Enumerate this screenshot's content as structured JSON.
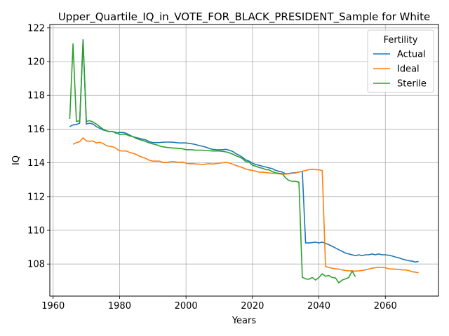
{
  "chart_data": {
    "type": "line",
    "title": "Upper_Quartile_IQ_in_VOTE_FOR_BLACK_PRESIDENT_Sample for White",
    "xlabel": "Years",
    "ylabel": "IQ",
    "xlim": [
      1959,
      2076
    ],
    "ylim": [
      106.1,
      122.2
    ],
    "xticks": [
      1960,
      1980,
      2000,
      2020,
      2040,
      2060
    ],
    "yticks": [
      108,
      110,
      112,
      114,
      116,
      118,
      120,
      122
    ],
    "grid": true,
    "legend": {
      "title": "Fertility",
      "placement": "top-right"
    },
    "series": [
      {
        "name": "Actual",
        "color": "#1f77b4",
        "x": [
          1965,
          1966,
          1967,
          1968,
          1969,
          1970,
          1971,
          1972,
          1973,
          1974,
          1975,
          1976,
          1977,
          1978,
          1979,
          1980,
          1981,
          1982,
          1983,
          1984,
          1985,
          1986,
          1987,
          1988,
          1989,
          1990,
          1991,
          1992,
          1993,
          1994,
          1995,
          1996,
          1997,
          1998,
          1999,
          2000,
          2001,
          2002,
          2003,
          2004,
          2005,
          2006,
          2007,
          2008,
          2009,
          2010,
          2011,
          2012,
          2013,
          2014,
          2015,
          2016,
          2017,
          2018,
          2019,
          2020,
          2021,
          2022,
          2023,
          2024,
          2025,
          2026,
          2027,
          2028,
          2029,
          2030,
          2031,
          2032,
          2033,
          2034,
          2035,
          2036,
          2037,
          2038,
          2039,
          2040,
          2041,
          2042,
          2043,
          2044,
          2045,
          2046,
          2047,
          2048,
          2049,
          2050,
          2051,
          2052,
          2053,
          2054,
          2055,
          2056,
          2057,
          2058,
          2059,
          2060,
          2061,
          2062,
          2063,
          2064,
          2065,
          2066,
          2067,
          2068,
          2069,
          2070
        ],
        "y": [
          116.15,
          116.25,
          116.27,
          116.35,
          121.3,
          116.3,
          116.35,
          116.3,
          116.15,
          116.05,
          115.95,
          115.9,
          115.85,
          115.85,
          115.75,
          115.8,
          115.8,
          115.75,
          115.65,
          115.55,
          115.5,
          115.45,
          115.4,
          115.35,
          115.25,
          115.2,
          115.2,
          115.2,
          115.22,
          115.23,
          115.23,
          115.22,
          115.2,
          115.18,
          115.18,
          115.18,
          115.15,
          115.12,
          115.08,
          115.02,
          114.98,
          114.93,
          114.85,
          114.8,
          114.78,
          114.77,
          114.78,
          114.8,
          114.75,
          114.68,
          114.55,
          114.45,
          114.33,
          114.17,
          114.1,
          113.98,
          113.9,
          113.85,
          113.8,
          113.75,
          113.7,
          113.65,
          113.55,
          113.5,
          113.45,
          113.35,
          113.37,
          113.4,
          113.42,
          113.45,
          113.5,
          109.25,
          109.25,
          109.27,
          109.3,
          109.25,
          109.3,
          109.22,
          109.15,
          109.05,
          108.95,
          108.85,
          108.75,
          108.65,
          108.6,
          108.55,
          108.5,
          108.55,
          108.5,
          108.55,
          108.55,
          108.6,
          108.55,
          108.6,
          108.55,
          108.55,
          108.52,
          108.48,
          108.42,
          108.38,
          108.3,
          108.25,
          108.2,
          108.18,
          108.12,
          108.15
        ]
      },
      {
        "name": "Ideal",
        "color": "#ff7f0e",
        "x": [
          1966,
          1967,
          1968,
          1969,
          1970,
          1971,
          1972,
          1973,
          1974,
          1975,
          1976,
          1977,
          1978,
          1979,
          1980,
          1981,
          1982,
          1983,
          1984,
          1985,
          1986,
          1987,
          1988,
          1989,
          1990,
          1991,
          1992,
          1993,
          1994,
          1995,
          1996,
          1997,
          1998,
          1999,
          2000,
          2001,
          2002,
          2003,
          2004,
          2005,
          2006,
          2007,
          2008,
          2009,
          2010,
          2011,
          2012,
          2013,
          2014,
          2015,
          2016,
          2017,
          2018,
          2019,
          2020,
          2021,
          2022,
          2023,
          2024,
          2025,
          2026,
          2027,
          2028,
          2029,
          2030,
          2031,
          2032,
          2033,
          2034,
          2035,
          2036,
          2037,
          2038,
          2039,
          2040,
          2041,
          2042,
          2043,
          2044,
          2045,
          2046,
          2047,
          2048,
          2049,
          2050,
          2051,
          2052,
          2053,
          2054,
          2055,
          2056,
          2057,
          2058,
          2059,
          2060,
          2061,
          2062,
          2063,
          2064,
          2065,
          2066,
          2067,
          2068,
          2069,
          2070
        ],
        "y": [
          115.1,
          115.2,
          115.25,
          115.48,
          115.3,
          115.28,
          115.3,
          115.18,
          115.22,
          115.15,
          115.02,
          114.98,
          114.95,
          114.85,
          114.72,
          114.7,
          114.7,
          114.62,
          114.57,
          114.5,
          114.4,
          114.32,
          114.25,
          114.15,
          114.1,
          114.1,
          114.1,
          114.03,
          114.03,
          114.05,
          114.08,
          114.05,
          114.03,
          114.05,
          113.98,
          113.95,
          113.95,
          113.93,
          113.92,
          113.9,
          113.93,
          113.95,
          113.93,
          113.95,
          113.98,
          114.0,
          114.02,
          114.0,
          113.92,
          113.85,
          113.78,
          113.72,
          113.63,
          113.58,
          113.55,
          113.5,
          113.45,
          113.45,
          113.42,
          113.4,
          113.38,
          113.38,
          113.35,
          113.33,
          113.33,
          113.35,
          113.38,
          113.4,
          113.45,
          113.5,
          113.55,
          113.6,
          113.62,
          113.6,
          113.58,
          113.55,
          107.85,
          107.8,
          107.75,
          107.72,
          107.7,
          107.65,
          107.62,
          107.6,
          107.6,
          107.58,
          107.6,
          107.62,
          107.65,
          107.7,
          107.75,
          107.78,
          107.8,
          107.8,
          107.78,
          107.72,
          107.7,
          107.7,
          107.68,
          107.65,
          107.65,
          107.62,
          107.55,
          107.52,
          107.48
        ]
      },
      {
        "name": "Sterile",
        "color": "#2ca02c",
        "x": [
          1965,
          1966,
          1967,
          1968,
          1969,
          1970,
          1971,
          1972,
          1973,
          1974,
          1975,
          1976,
          1977,
          1978,
          1979,
          1980,
          1981,
          1982,
          1983,
          1984,
          1985,
          1986,
          1987,
          1988,
          1989,
          1990,
          1991,
          1992,
          1993,
          1994,
          1995,
          1996,
          1997,
          1998,
          1999,
          2000,
          2001,
          2002,
          2003,
          2004,
          2005,
          2006,
          2007,
          2008,
          2009,
          2010,
          2011,
          2012,
          2013,
          2014,
          2015,
          2016,
          2017,
          2018,
          2019,
          2020,
          2021,
          2022,
          2023,
          2024,
          2025,
          2026,
          2027,
          2028,
          2029,
          2030,
          2031,
          2032,
          2033,
          2034,
          2035,
          2036,
          2037,
          2038,
          2039,
          2040,
          2041,
          2042,
          2043,
          2044,
          2045,
          2046,
          2047,
          2048,
          2049,
          2050,
          2051
        ],
        "y": [
          116.6,
          121.05,
          116.45,
          116.5,
          121.25,
          116.45,
          116.5,
          116.42,
          116.3,
          116.15,
          116.0,
          115.9,
          115.85,
          115.85,
          115.8,
          115.68,
          115.7,
          115.68,
          115.6,
          115.55,
          115.45,
          115.38,
          115.32,
          115.25,
          115.18,
          115.12,
          115.08,
          115.0,
          114.95,
          114.92,
          114.9,
          114.88,
          114.87,
          114.85,
          114.83,
          114.78,
          114.78,
          114.77,
          114.75,
          114.75,
          114.75,
          114.73,
          114.72,
          114.7,
          114.7,
          114.7,
          114.68,
          114.65,
          114.6,
          114.52,
          114.42,
          114.35,
          114.25,
          114.07,
          114.05,
          113.85,
          113.8,
          113.72,
          113.68,
          113.6,
          113.58,
          113.48,
          113.4,
          113.38,
          113.35,
          113.1,
          112.95,
          112.9,
          112.9,
          112.85,
          107.22,
          107.12,
          107.1,
          107.2,
          107.05,
          107.2,
          107.42,
          107.28,
          107.32,
          107.2,
          107.18,
          106.88,
          107.05,
          107.12,
          107.2,
          107.58,
          107.25
        ]
      }
    ]
  }
}
